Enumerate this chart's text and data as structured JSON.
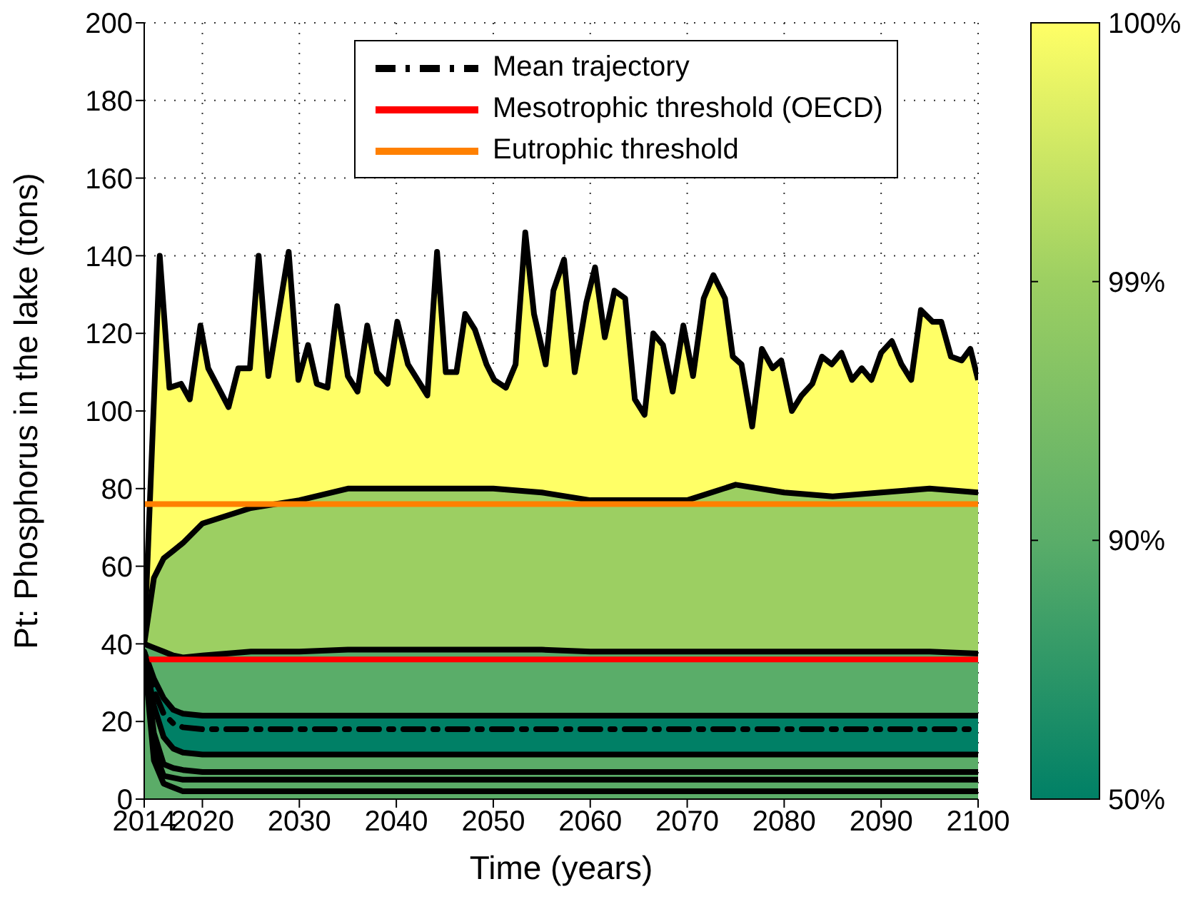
{
  "chart_data": {
    "type": "area",
    "xlabel": "Time (years)",
    "ylabel": "Pt: Phosphorus in the lake (tons)",
    "xlim": [
      2014,
      2100
    ],
    "xticks": [
      2014,
      2020,
      2030,
      2040,
      2050,
      2060,
      2070,
      2080,
      2090,
      2100
    ],
    "ylim": [
      0,
      200
    ],
    "yticks": [
      0,
      20,
      40,
      60,
      80,
      100,
      120,
      140,
      160,
      180,
      200
    ],
    "grid": true,
    "legend": "top right",
    "annotations": [
      "50%",
      "90%",
      "99%",
      "100%"
    ],
    "series": [
      {
        "color": "#ffff66",
        "x": [
          2014,
          2015.6,
          2016.6,
          2017.8,
          2018.7,
          2019.8,
          2020.6,
          2022.7,
          2023.7,
          2024.9,
          2025.8,
          2026.8,
          2028.9,
          2029.9,
          2030.9,
          2031.8,
          2032.9,
          2033.9,
          2035,
          2036,
          2037,
          2038,
          2039.1,
          2040.1,
          2041.2,
          2043.2,
          2044.2,
          2045.1,
          2046.2,
          2047.1,
          2048.1,
          2049.3,
          2050.1,
          2051.3,
          2052.3,
          2053.3,
          2054.2,
          2055.4,
          2056.2,
          2057.3,
          2058.4,
          2059.6,
          2060.5,
          2061.5,
          2062.5,
          2063.6,
          2064.6,
          2065.6,
          2066.5,
          2067.5,
          2068.5,
          2069.6,
          2070.6,
          2071.7,
          2072.7,
          2073.9,
          2074.7,
          2075.6,
          2076.7,
          2077.7,
          2078.8,
          2079.7,
          2080.8,
          2081.8,
          2082.9,
          2083.9,
          2084.9,
          2085.9,
          2087,
          2088,
          2089,
          2090,
          2091.1,
          2092.1,
          2093.1,
          2094.1,
          2095.3,
          2096.2,
          2097.2,
          2098.3,
          2099.2,
          2100
        ],
        "values": [
          40,
          140,
          106,
          107,
          103,
          122,
          111,
          101,
          111,
          111,
          140,
          109,
          141,
          108,
          117,
          107,
          106,
          127,
          109,
          105,
          122,
          110,
          107,
          123,
          112,
          104,
          141,
          110,
          110,
          125,
          121,
          112,
          108,
          106,
          112,
          146,
          125,
          112,
          131,
          139,
          110,
          128,
          137,
          119,
          131,
          129,
          103,
          99,
          120,
          117,
          105,
          122,
          109,
          129,
          135,
          129,
          114,
          112,
          96,
          116,
          111,
          113,
          100,
          104,
          107,
          114,
          112,
          115,
          108,
          111,
          108,
          115,
          118,
          112,
          108,
          126,
          123,
          123,
          114,
          113,
          116,
          108
        ]
      },
      {
        "color": "#9ccf62",
        "x": [
          2014,
          2015,
          2016,
          2017,
          2018,
          2020,
          2025,
          2030,
          2035,
          2040,
          2045,
          2050,
          2055,
          2060,
          2065,
          2070,
          2075,
          2080,
          2085,
          2090,
          2095,
          2100
        ],
        "values": [
          40,
          57,
          62,
          64,
          66,
          71,
          75,
          77,
          80,
          80,
          80,
          80,
          79,
          77,
          77,
          77,
          81,
          79,
          78,
          79,
          80,
          79
        ]
      },
      {
        "color": "#5aad69",
        "x": [
          2014,
          2015,
          2016,
          2017,
          2018,
          2020,
          2025,
          2030,
          2035,
          2040,
          2045,
          2050,
          2055,
          2060,
          2065,
          2070,
          2075,
          2080,
          2085,
          2090,
          2095,
          2100
        ],
        "values": [
          40,
          39,
          38,
          37,
          36.5,
          37,
          38,
          38,
          38.5,
          38.5,
          38.5,
          38.5,
          38.5,
          38,
          38,
          38,
          38,
          38,
          38,
          38,
          38,
          37.5
        ]
      },
      {
        "color": "#008066",
        "x": [
          2014,
          2015,
          2016,
          2017,
          2018,
          2020,
          2025,
          2030,
          2035,
          2040,
          2045,
          2050,
          2055,
          2060,
          2065,
          2070,
          2075,
          2080,
          2085,
          2090,
          2095,
          2100
        ],
        "values": [
          38,
          31,
          26,
          23,
          22,
          21.5,
          21.5,
          21.5,
          21.5,
          21.5,
          21.5,
          21.5,
          21.5,
          21.5,
          21.5,
          21.5,
          21.5,
          21.5,
          21.5,
          21.5,
          21.5,
          21.5
        ]
      },
      {
        "color": "#5bac68",
        "x": [
          2014,
          2015,
          2016,
          2017,
          2018,
          2020,
          2025,
          2030,
          2035,
          2040,
          2045,
          2050,
          2055,
          2060,
          2065,
          2070,
          2075,
          2080,
          2085,
          2090,
          2095,
          2100
        ],
        "values": [
          37,
          24,
          16,
          13,
          12,
          11.5,
          11.5,
          11.5,
          11.5,
          11.5,
          11.5,
          11.5,
          11.5,
          11.5,
          11.5,
          11.5,
          11.5,
          11.5,
          11.5,
          11.5,
          11.5,
          11.5
        ]
      },
      {
        "type": "line",
        "color": "#000000",
        "x": [
          2014,
          2015,
          2016,
          2017,
          2018,
          2020,
          2025,
          2030,
          2035,
          2040,
          2045,
          2050,
          2055,
          2060,
          2065,
          2070,
          2075,
          2080,
          2085,
          2090,
          2095,
          2100
        ],
        "values": [
          37,
          17,
          9,
          8,
          7.5,
          7,
          7,
          7,
          7,
          7,
          7,
          7,
          7,
          7,
          7,
          7,
          7,
          7,
          7,
          7,
          7,
          7
        ]
      },
      {
        "type": "line",
        "color": "#000000",
        "x": [
          2014,
          2015,
          2016,
          2017,
          2018,
          2020,
          2025,
          2030,
          2035,
          2040,
          2045,
          2050,
          2055,
          2060,
          2065,
          2070,
          2075,
          2080,
          2085,
          2090,
          2095,
          2100
        ],
        "values": [
          37,
          13,
          6,
          5.5,
          5,
          5,
          5,
          5,
          5,
          5,
          5,
          5,
          5,
          5,
          5,
          5,
          5,
          5,
          5,
          5,
          5,
          5
        ]
      },
      {
        "type": "line",
        "color": "#000000",
        "x": [
          2014,
          2015,
          2016,
          2017,
          2018,
          2020,
          2025,
          2030,
          2035,
          2040,
          2045,
          2050,
          2055,
          2060,
          2065,
          2070,
          2075,
          2080,
          2085,
          2090,
          2095,
          2100
        ],
        "values": [
          37,
          10,
          4,
          3,
          2,
          2,
          2,
          2,
          2,
          2,
          2,
          2,
          2,
          2,
          2,
          2,
          2,
          2,
          2,
          2,
          2,
          2
        ]
      },
      {
        "type": "line",
        "name": "Mean trajectory",
        "color": "#000000",
        "line_style": "dashed",
        "x": [
          2014,
          2015,
          2016,
          2017,
          2018,
          2020,
          2025,
          2030,
          2035,
          2040,
          2045,
          2050,
          2055,
          2060,
          2065,
          2070,
          2075,
          2080,
          2085,
          2090,
          2095,
          2100
        ],
        "values": [
          38,
          28,
          22,
          19.5,
          18.5,
          18,
          18,
          18,
          18,
          18,
          18,
          18,
          18,
          18,
          18,
          18,
          18,
          18,
          18,
          18,
          18,
          18
        ]
      }
    ],
    "ref_lines": [
      {
        "axis": "y",
        "value": 36,
        "label": "Mesotrophic threshold (OECD)",
        "color": "#ff0000"
      },
      {
        "axis": "y",
        "value": 76,
        "label": "Eutrophic threshold",
        "color": "#ff8000"
      }
    ]
  }
}
